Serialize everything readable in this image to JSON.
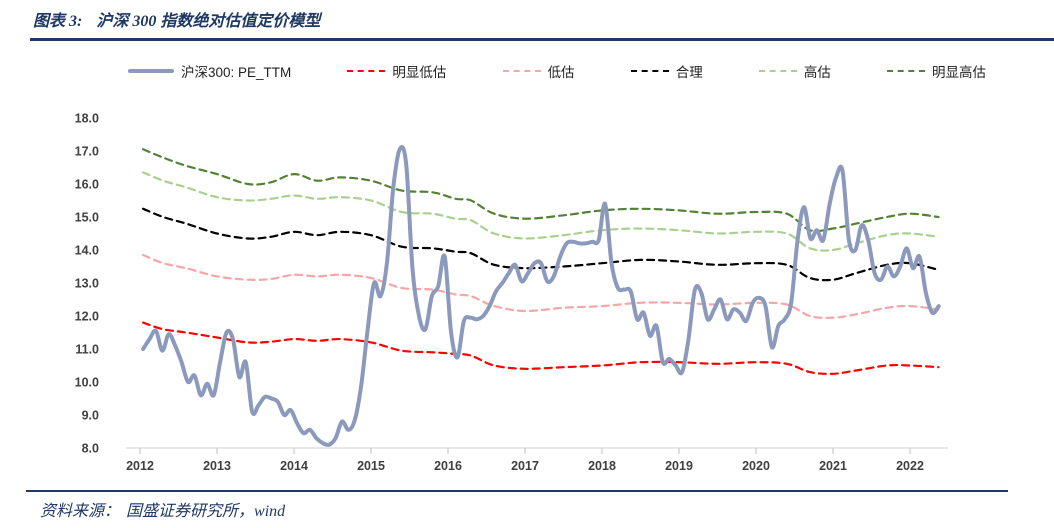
{
  "header": {
    "figure_label": "图表 3:",
    "figure_title": "沪深 300 指数绝对估值定价模型"
  },
  "footer": {
    "source_label": "资料来源：",
    "source_text": "国盛证券研究所，wind"
  },
  "colors": {
    "accent_navy": "#1F3864",
    "main_line": "#8B99BC",
    "obvious_undervalued": "#FF0000",
    "undervalued": "#F4A7A5",
    "fair": "#000000",
    "overvalued": "#A9D18E",
    "obvious_overvalued": "#548235",
    "axis_line": "#D9D9D9",
    "tick_mark": "#BFBFBF",
    "tick_text": "#404040"
  },
  "chart_data": {
    "type": "line",
    "title": "沪深 300 指数绝对估值定价模型",
    "legend_position": "top",
    "x_axis": {
      "tick_labels": [
        "2012",
        "2013",
        "2014",
        "2015",
        "2016",
        "2017",
        "2018",
        "2019",
        "2020",
        "2021",
        "2022"
      ],
      "range": [
        2011.8,
        2022.5
      ],
      "grid": false
    },
    "y_axis": {
      "tick_labels": [
        "8.0",
        "9.0",
        "10.0",
        "11.0",
        "12.0",
        "13.0",
        "14.0",
        "15.0",
        "16.0",
        "17.0",
        "18.0"
      ],
      "min": 8,
      "max": 18,
      "grid": false
    },
    "band_x": [
      2012.04,
      2012.3,
      2012.6,
      2013.0,
      2013.4,
      2013.7,
      2014.0,
      2014.3,
      2014.6,
      2015.0,
      2015.4,
      2015.8,
      2016.1,
      2016.3,
      2016.6,
      2017.0,
      2017.5,
      2018.0,
      2018.5,
      2019.0,
      2019.5,
      2020.0,
      2020.4,
      2020.7,
      2021.0,
      2021.3,
      2021.7,
      2022.0,
      2022.37
    ],
    "series": [
      {
        "id": "csi300-pe-ttm",
        "name": "沪深300: PE_TTM",
        "color": "#8B99BC",
        "width": 4,
        "dash": null,
        "z": 1,
        "x_start": 2012.04,
        "x_step": 0.0833333,
        "values": [
          11.0,
          11.3,
          11.55,
          10.95,
          11.45,
          11.1,
          10.6,
          10.0,
          10.2,
          9.6,
          9.95,
          9.6,
          10.6,
          11.5,
          11.3,
          10.15,
          10.6,
          9.1,
          9.3,
          9.55,
          9.5,
          9.4,
          9.0,
          9.15,
          8.75,
          8.45,
          8.55,
          8.3,
          8.15,
          8.1,
          8.3,
          8.8,
          8.55,
          8.85,
          9.9,
          11.6,
          13.0,
          12.6,
          13.6,
          15.9,
          17.05,
          16.6,
          13.4,
          12.0,
          11.6,
          12.6,
          12.9,
          13.8,
          11.5,
          10.75,
          11.85,
          11.95,
          11.9,
          12.0,
          12.3,
          12.75,
          13.0,
          13.3,
          13.55,
          13.05,
          13.3,
          13.6,
          13.6,
          13.05,
          13.2,
          13.8,
          14.2,
          14.25,
          14.2,
          14.2,
          14.25,
          14.3,
          15.4,
          13.6,
          12.85,
          12.8,
          12.75,
          11.9,
          12.1,
          11.4,
          11.7,
          10.6,
          10.7,
          10.5,
          10.3,
          11.3,
          12.8,
          12.7,
          11.9,
          12.2,
          12.5,
          11.9,
          12.2,
          12.1,
          11.85,
          12.4,
          12.55,
          12.3,
          11.05,
          11.7,
          11.9,
          12.4,
          14.3,
          15.3,
          14.35,
          14.6,
          14.3,
          15.4,
          16.2,
          16.4,
          14.3,
          14.0,
          14.75,
          14.3,
          13.3,
          13.1,
          13.5,
          13.2,
          13.5,
          14.05,
          13.45,
          13.8,
          12.7,
          12.1,
          12.3
        ]
      },
      {
        "id": "obvious-undervalued",
        "name": "明显低估",
        "color": "#FF0000",
        "width": 2.2,
        "dash": "7 5",
        "z": 0,
        "x_ref": "band_x",
        "values": [
          11.8,
          11.6,
          11.5,
          11.35,
          11.2,
          11.22,
          11.3,
          11.25,
          11.3,
          11.2,
          10.95,
          10.9,
          10.85,
          10.8,
          10.5,
          10.4,
          10.45,
          10.5,
          10.6,
          10.6,
          10.55,
          10.6,
          10.55,
          10.3,
          10.25,
          10.35,
          10.5,
          10.5,
          10.45
        ]
      },
      {
        "id": "undervalued",
        "name": "低估",
        "color": "#F4A7A5",
        "width": 2.2,
        "dash": "7 5",
        "z": 0,
        "x_ref": "band_x",
        "values": [
          13.85,
          13.6,
          13.45,
          13.2,
          13.1,
          13.12,
          13.25,
          13.2,
          13.25,
          13.15,
          12.85,
          12.8,
          12.65,
          12.6,
          12.3,
          12.15,
          12.25,
          12.3,
          12.4,
          12.4,
          12.35,
          12.4,
          12.35,
          12.0,
          11.95,
          12.05,
          12.25,
          12.3,
          12.2
        ]
      },
      {
        "id": "fair",
        "name": "合理",
        "color": "#000000",
        "width": 2.2,
        "dash": "7 5",
        "z": 0,
        "x_ref": "band_x",
        "values": [
          15.25,
          15.0,
          14.8,
          14.5,
          14.35,
          14.4,
          14.55,
          14.45,
          14.55,
          14.45,
          14.1,
          14.05,
          13.95,
          13.9,
          13.55,
          13.45,
          13.5,
          13.6,
          13.7,
          13.65,
          13.55,
          13.6,
          13.55,
          13.15,
          13.1,
          13.3,
          13.55,
          13.6,
          13.4
        ]
      },
      {
        "id": "overvalued",
        "name": "高估",
        "color": "#A9D18E",
        "width": 2.2,
        "dash": "7 5",
        "z": 0,
        "x_ref": "band_x",
        "values": [
          16.35,
          16.1,
          15.9,
          15.6,
          15.5,
          15.55,
          15.65,
          15.55,
          15.6,
          15.5,
          15.15,
          15.1,
          14.95,
          14.9,
          14.5,
          14.35,
          14.45,
          14.6,
          14.65,
          14.6,
          14.5,
          14.55,
          14.5,
          14.05,
          14.0,
          14.2,
          14.45,
          14.5,
          14.4
        ]
      },
      {
        "id": "obvious-overvalued",
        "name": "明显高估",
        "color": "#548235",
        "width": 2.2,
        "dash": "7 5",
        "z": 0,
        "x_ref": "band_x",
        "values": [
          17.05,
          16.8,
          16.55,
          16.3,
          16.0,
          16.05,
          16.3,
          16.1,
          16.2,
          16.1,
          15.8,
          15.75,
          15.55,
          15.5,
          15.1,
          14.95,
          15.05,
          15.2,
          15.25,
          15.2,
          15.1,
          15.15,
          15.1,
          14.6,
          14.65,
          14.8,
          15.0,
          15.1,
          15.0
        ]
      }
    ]
  }
}
